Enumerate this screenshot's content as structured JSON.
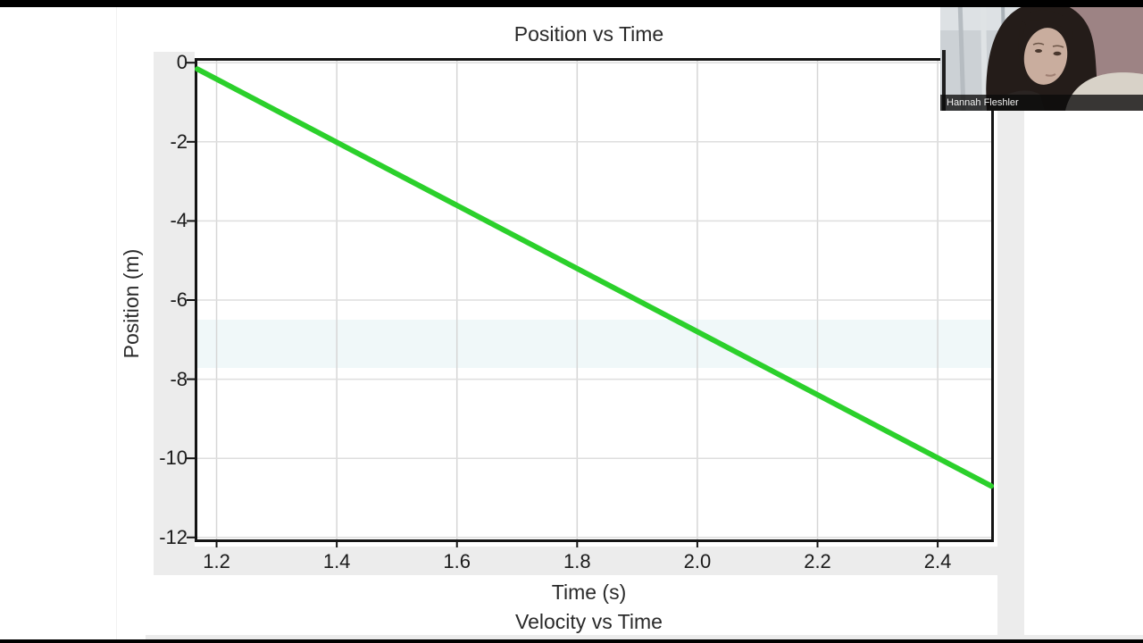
{
  "chart_data": {
    "type": "line",
    "title": "Position vs Time",
    "xlabel": "Time (s)",
    "ylabel": "Position (m)",
    "x_ticks": {
      "values": [
        1.2,
        1.4,
        1.6,
        1.8,
        2.0,
        2.2,
        2.4
      ],
      "labels": [
        "1.2",
        "1.4",
        "1.6",
        "1.8",
        "2.0",
        "2.2",
        "2.4"
      ]
    },
    "y_ticks": {
      "values": [
        0,
        -2,
        -4,
        -6,
        -8,
        -10,
        -12
      ],
      "labels": [
        "0",
        "-2",
        "-4",
        "-6",
        "-8",
        "-10",
        "-12"
      ]
    },
    "xlim": [
      1.168,
      2.489
    ],
    "ylim": [
      -12.05,
      0.05
    ],
    "grid": true,
    "line_color": "#2bd02b",
    "series": [
      {
        "name": "position",
        "points": [
          [
            1.168,
            -0.16
          ],
          [
            2.489,
            -10.7
          ]
        ]
      }
    ]
  },
  "next_chart": {
    "title": "Velocity vs Time"
  },
  "webcam": {
    "participant_name": "Hannah Fleshler"
  }
}
